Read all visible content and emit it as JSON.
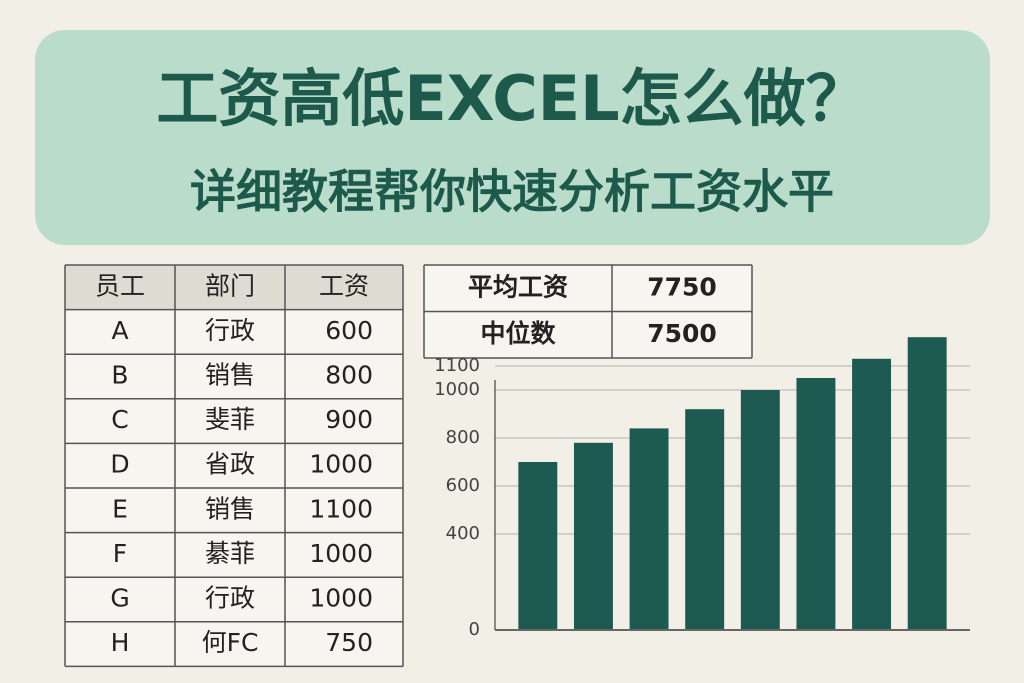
{
  "header": {
    "title": "工资高低EXCEL怎么做？",
    "subtitle": "详细教程帮你快速分析工资水平"
  },
  "table": {
    "header": [
      "员工",
      "部门",
      "工资"
    ],
    "rows": [
      [
        "A",
        "行政",
        600
      ],
      [
        "B",
        "销售",
        800
      ],
      [
        "C",
        "斐菲",
        900
      ],
      [
        "D",
        "省政",
        1000
      ],
      [
        "E",
        "销售",
        1100
      ],
      [
        "F",
        "綦菲",
        1000
      ],
      [
        "G",
        "行政",
        1000
      ],
      [
        "H",
        "何FC",
        750
      ]
    ]
  },
  "summary": {
    "rows": [
      [
        "平均工资",
        7750
      ],
      [
        "中位数",
        7500
      ]
    ]
  },
  "chart_data": {
    "type": "bar",
    "values": [
      700,
      780,
      840,
      920,
      1000,
      1050,
      1130,
      1220
    ],
    "color": "#1d5a52",
    "ylim": [
      0,
      1250
    ],
    "yticks": [
      0,
      400,
      600,
      800,
      1000,
      1100
    ],
    "grid": true
  }
}
